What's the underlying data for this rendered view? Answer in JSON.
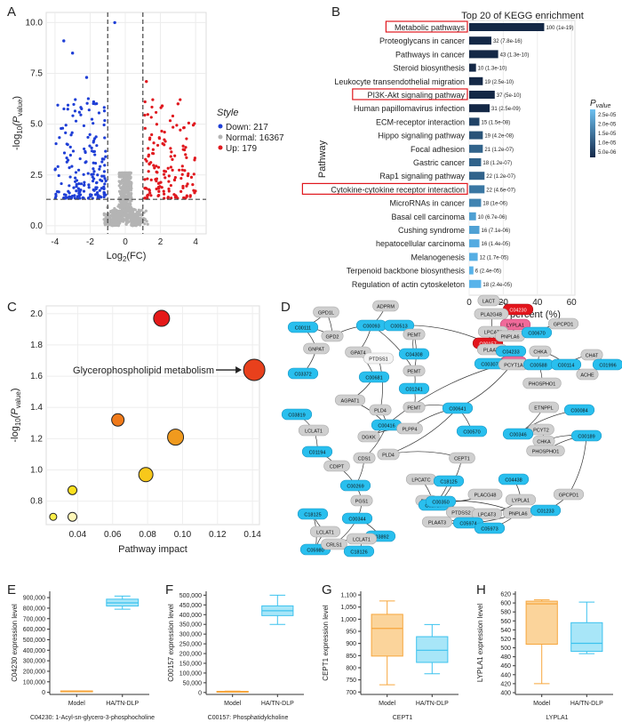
{
  "panels": {
    "A": {
      "letter": "A",
      "chart_data": {
        "type": "scatter",
        "xlabel_main": "Log",
        "xlabel_sub": "2",
        "xlabel_end": "(FC)",
        "ylabel_main": "-log",
        "ylabel_sub": "10",
        "ylabel_p": "(P",
        "ylabel_psub": "value",
        "ylabel_end": ")",
        "xticks": [
          -4,
          -2,
          0,
          2,
          4
        ],
        "yticks": [
          0.0,
          2.5,
          5.0,
          7.5,
          10.0
        ],
        "ytick_labels": [
          "0.0",
          "2.5",
          "5.0",
          "7.5",
          "10.0"
        ],
        "xlim": [
          -4.5,
          4.6
        ],
        "ylim": [
          -0.4,
          10.5
        ],
        "thresholds": {
          "fc": [
            -1,
            1
          ],
          "p": 1.3
        },
        "legend_title": "Style",
        "legend": [
          {
            "label": "Down: 217",
            "color": "#1f3fd6"
          },
          {
            "label": "Normal: 16367",
            "color": "#b4b4b4"
          },
          {
            "label": "Up: 179",
            "color": "#e0181e"
          }
        ]
      }
    },
    "B": {
      "letter": "B",
      "chart_data": {
        "type": "bar",
        "title": "Top 20 of KEGG enrichment",
        "xlabel": "Gene percent (%)",
        "ylabel": "Pathway",
        "xticks": [
          0,
          20,
          40,
          60
        ],
        "xlim": [
          0,
          62
        ],
        "legend_title_main": "P",
        "legend_title_sub": "value",
        "legend_ticks": [
          "2.5e-05",
          "2.0e-05",
          "1.5e-05",
          "1.0e-05",
          "5.0e-06"
        ],
        "highlighted": [
          "Metabolic pathways",
          "PI3K-Akt signaling pathway",
          "Cytokine-cytokine receptor interaction"
        ],
        "categories": [
          "Metabolic pathways",
          "Proteoglycans in cancer",
          "Pathways in cancer",
          "Steroid biosynthesis",
          "Leukocyte transendothelial migration",
          "PI3K-Akt signaling pathway",
          "Human papillomavirus infection",
          "ECM-receptor interaction",
          "Hippo signaling pathway",
          "Focal adhesion",
          "Gastric cancer",
          "Rap1 signaling pathway",
          "Cytokine-cytokine receptor interaction",
          "MicroRNAs in cancer",
          "Basal cell carcinoma",
          "Cushing syndrome",
          "hepatocellular carcinoma",
          "Melanogenesis",
          "Terpenoid backbone biosynthesis",
          "Regulation of actin cytoskeleton"
        ],
        "values": [
          44,
          13,
          17,
          4,
          8,
          15,
          12,
          6,
          8,
          8,
          7,
          9,
          9,
          7,
          4,
          6,
          6,
          5,
          2.5,
          7
        ],
        "labels": [
          "100 (1e-19)",
          "32 (7.8e-16)",
          "43 (1.3e-10)",
          "10 (1.3e-10)",
          "19 (2.5e-10)",
          "37 (5e-10)",
          "31 (2.5e-09)",
          "15 (1.5e-08)",
          "19 (4.2e-08)",
          "21 (1.2e-07)",
          "18 (1.2e-07)",
          "22 (1.2e-07)",
          "22 (4.6e-07)",
          "18 (1e-06)",
          "10 (6.7e-06)",
          "16 (7.1e-06)",
          "16 (1.4e-05)",
          "12 (1.7e-05)",
          "6 (2.4e-05)",
          "18 (2.4e-05)"
        ],
        "pvalues": [
          1e-19,
          7.8e-16,
          1.3e-10,
          1.3e-10,
          2.5e-10,
          5e-10,
          2.5e-09,
          1.5e-08,
          4.2e-08,
          1.2e-07,
          1.2e-07,
          1.2e-07,
          4.6e-07,
          1e-06,
          6.7e-06,
          7.1e-06,
          1.4e-05,
          1.7e-05,
          2.4e-05,
          2.4e-05
        ]
      }
    },
    "C": {
      "letter": "C",
      "chart_data": {
        "type": "scatter",
        "xlabel": "Pathway impact",
        "ylabel_main": "-log",
        "ylabel_sub": "10",
        "ylabel_p": "(P",
        "ylabel_psub": "value",
        "ylabel_end": ")",
        "xticks": [
          0.04,
          0.06,
          0.08,
          0.1,
          0.12,
          0.14
        ],
        "xtick_labels": [
          "0.04",
          "0.06",
          "0.08",
          "0.10",
          "0.12",
          "0.14"
        ],
        "yticks": [
          0.8,
          1.0,
          1.2,
          1.4,
          1.6,
          1.8,
          2.0
        ],
        "ytick_labels": [
          "0.8",
          "1.0",
          "1.2",
          "1.4",
          "1.6",
          "1.8",
          "2.0"
        ],
        "xlim": [
          0.022,
          0.144
        ],
        "ylim": [
          0.65,
          2.05
        ],
        "annotation": "Glycerophospholipid metabolism",
        "points": [
          {
            "x": 0.141,
            "y": 1.64,
            "size": 12,
            "color": "#e8401c"
          },
          {
            "x": 0.088,
            "y": 1.97,
            "size": 9,
            "color": "#e51919"
          },
          {
            "x": 0.063,
            "y": 1.32,
            "size": 7,
            "color": "#f07a1a"
          },
          {
            "x": 0.096,
            "y": 1.21,
            "size": 9,
            "color": "#f09a1e"
          },
          {
            "x": 0.079,
            "y": 0.97,
            "size": 8,
            "color": "#f8c81a"
          },
          {
            "x": 0.037,
            "y": 0.87,
            "size": 5,
            "color": "#fbe01e"
          },
          {
            "x": 0.026,
            "y": 0.7,
            "size": 4,
            "color": "#fdf04a"
          },
          {
            "x": 0.037,
            "y": 0.7,
            "size": 5,
            "color": "#fff7b8"
          }
        ]
      }
    },
    "D": {
      "letter": "D",
      "nodes": [
        {
          "t": "GPD1L",
          "k": "g"
        },
        {
          "t": "ADPRM",
          "k": "g"
        },
        {
          "t": "C00111",
          "k": "b"
        },
        {
          "t": "GPD2",
          "k": "g"
        },
        {
          "t": "C00093",
          "k": "b"
        },
        {
          "t": "C00513",
          "k": "b"
        },
        {
          "t": "GNPAT",
          "k": "g"
        },
        {
          "t": "C03372",
          "k": "b"
        },
        {
          "t": "GPAT4",
          "k": "g"
        },
        {
          "t": "PTDSS1",
          "k": "w"
        },
        {
          "t": "C00681",
          "k": "b"
        },
        {
          "t": "AGPAT1",
          "k": "g"
        },
        {
          "t": "PLD4",
          "k": "g"
        },
        {
          "t": "C04308",
          "k": "b"
        },
        {
          "t": "PEMT",
          "k": "g"
        },
        {
          "t": "PEMT",
          "k": "g"
        },
        {
          "t": "C01241",
          "k": "b"
        },
        {
          "t": "PEMT",
          "k": "g"
        },
        {
          "t": "LACT",
          "k": "g"
        },
        {
          "t": "C04230",
          "k": "r"
        },
        {
          "t": "PLA2G4B",
          "k": "g"
        },
        {
          "t": "LYPLA1",
          "k": "p"
        },
        {
          "t": "C00157",
          "k": "r"
        },
        {
          "t": "LPCAT3",
          "k": "g"
        },
        {
          "t": "PNPLA6",
          "k": "g"
        },
        {
          "t": "C00670",
          "k": "b"
        },
        {
          "t": "GPCPD1",
          "k": "g"
        },
        {
          "t": "PLAAT3",
          "k": "g"
        },
        {
          "t": "C04233",
          "k": "b"
        },
        {
          "t": "CEPT1",
          "k": "p"
        },
        {
          "t": "C00307",
          "k": "b"
        },
        {
          "t": "PCYT1A",
          "k": "g"
        },
        {
          "t": "C00588",
          "k": "b"
        },
        {
          "t": "CHKA",
          "k": "g"
        },
        {
          "t": "C00114",
          "k": "b"
        },
        {
          "t": "CHAT",
          "k": "g"
        },
        {
          "t": "C01996",
          "k": "b"
        },
        {
          "t": "PHOSPHO1",
          "k": "g"
        },
        {
          "t": "ACHE",
          "k": "g"
        },
        {
          "t": "C03819",
          "k": "b"
        },
        {
          "t": "C00416",
          "k": "b"
        },
        {
          "t": "DGKK",
          "k": "g"
        },
        {
          "t": "PLPP4",
          "k": "g"
        },
        {
          "t": "C00641",
          "k": "b"
        },
        {
          "t": "ETNPPL",
          "k": "g"
        },
        {
          "t": "C00084",
          "k": "b"
        },
        {
          "t": "LCLAT1",
          "k": "g"
        },
        {
          "t": "C00570",
          "k": "b"
        },
        {
          "t": "PCYT2",
          "k": "g"
        },
        {
          "t": "C01194",
          "k": "b"
        },
        {
          "t": "CHKA",
          "k": "g"
        },
        {
          "t": "C00346",
          "k": "b"
        },
        {
          "t": "PHOSPHO1",
          "k": "g"
        },
        {
          "t": "C00189",
          "k": "b"
        },
        {
          "t": "CDS1",
          "k": "g"
        },
        {
          "t": "PLD4",
          "k": "g"
        },
        {
          "t": "CEPT1",
          "k": "g"
        },
        {
          "t": "CDIPT",
          "k": "g"
        },
        {
          "t": "C00269",
          "k": "b"
        },
        {
          "t": "C18125",
          "k": "b"
        },
        {
          "t": "LPCATC",
          "k": "g"
        },
        {
          "t": "C18125",
          "k": "b"
        },
        {
          "t": "C04438",
          "k": "b"
        },
        {
          "t": "PISD",
          "k": "g"
        },
        {
          "t": "C02737",
          "k": "b"
        },
        {
          "t": "PLACG48",
          "k": "g"
        },
        {
          "t": "LYPLA1",
          "k": "g"
        },
        {
          "t": "GPCPD1",
          "k": "g"
        },
        {
          "t": "PGS1",
          "k": "g"
        },
        {
          "t": "C00350",
          "k": "b"
        },
        {
          "t": "LCLAT1",
          "k": "g"
        },
        {
          "t": "PTDSS2",
          "k": "g"
        },
        {
          "t": "LPCAT3",
          "k": "g"
        },
        {
          "t": "PNPLA6",
          "k": "g"
        },
        {
          "t": "C01233",
          "k": "b"
        },
        {
          "t": "C05980",
          "k": "b"
        },
        {
          "t": "C00344",
          "k": "b"
        },
        {
          "t": "C03892",
          "k": "b"
        },
        {
          "t": "PLAAT3",
          "k": "g"
        },
        {
          "t": "C05974",
          "k": "b"
        },
        {
          "t": "C05973",
          "k": "b"
        },
        {
          "t": "CRLS1",
          "k": "g"
        },
        {
          "t": "LCLAT1",
          "k": "g"
        },
        {
          "t": "C18126",
          "k": "b"
        }
      ]
    },
    "E": {
      "letter": "E",
      "ylabel": "C04230 expression level",
      "caption": "C04230: 1-Acyl-sn-glycero-3-phosphocholine",
      "yticks": [
        0,
        100000,
        200000,
        300000,
        400000,
        500000,
        600000,
        700000,
        800000,
        900000
      ],
      "ytick_labels": [
        "0",
        "100,000",
        "200,000",
        "300,000",
        "400,000",
        "500,000",
        "600,000",
        "700,000",
        "800,000",
        "900,000"
      ],
      "ylim": [
        -20000,
        960000
      ],
      "chart_data": {
        "type": "box",
        "categories": [
          "Model",
          "HA/TN-DLP"
        ],
        "boxes": [
          {
            "min": 9000,
            "q1": 11000,
            "median": 12000,
            "q3": 13000,
            "max": 14000,
            "color": "#f7a63c",
            "fill": "#fbd49b"
          },
          {
            "min": 790000,
            "q1": 820000,
            "median": 850000,
            "q3": 885000,
            "max": 915000,
            "color": "#3cc2ee",
            "fill": "#a8e6f8"
          }
        ]
      }
    },
    "F": {
      "letter": "F",
      "ylabel": "C00157 expression level",
      "caption": "C00157: Phosphatidylcholine",
      "yticks": [
        0,
        50000,
        100000,
        150000,
        200000,
        250000,
        300000,
        350000,
        400000,
        450000,
        500000
      ],
      "ytick_labels": [
        "0",
        "50,000",
        "100,000",
        "150,000",
        "200,000",
        "250,000",
        "300,000",
        "350,000",
        "400,000",
        "450,000",
        "500,000"
      ],
      "ylim": [
        -10000,
        520000
      ],
      "chart_data": {
        "type": "box",
        "categories": [
          "Model",
          "HA/TN-DLP"
        ],
        "boxes": [
          {
            "min": 4000,
            "q1": 5000,
            "median": 5500,
            "q3": 6000,
            "max": 7000,
            "color": "#f7a63c",
            "fill": "#fbd49b"
          },
          {
            "min": 350000,
            "q1": 395000,
            "median": 420000,
            "q3": 445000,
            "max": 500000,
            "color": "#3cc2ee",
            "fill": "#a8e6f8"
          }
        ]
      }
    },
    "G": {
      "letter": "G",
      "ylabel": "CEPT1 expression level",
      "caption": "CEPT1",
      "yticks": [
        700,
        750,
        800,
        850,
        900,
        950,
        1000,
        1050,
        1100
      ],
      "ytick_labels": [
        "700",
        "750",
        "800",
        "850",
        "900",
        "950",
        "1,000",
        "1,050",
        "1,100"
      ],
      "ylim": [
        690,
        1115
      ],
      "chart_data": {
        "type": "box",
        "categories": [
          "Model",
          "HA/TN-DLP"
        ],
        "boxes": [
          {
            "min": 730,
            "q1": 848,
            "median": 962,
            "q3": 1020,
            "max": 1075,
            "color": "#f7a63c",
            "fill": "#fbd49b"
          },
          {
            "min": 775,
            "q1": 822,
            "median": 872,
            "q3": 928,
            "max": 978,
            "color": "#3cc2ee",
            "fill": "#a8e6f8"
          }
        ]
      }
    },
    "H": {
      "letter": "H",
      "ylabel": "LYPLA1 expression level",
      "caption": "LYPLA1",
      "yticks": [
        400,
        420,
        440,
        460,
        480,
        500,
        520,
        540,
        560,
        580,
        600,
        620
      ],
      "ytick_labels": [
        "400",
        "420",
        "440",
        "460",
        "480",
        "500",
        "520",
        "540",
        "560",
        "580",
        "600",
        "620"
      ],
      "ylim": [
        396,
        626
      ],
      "chart_data": {
        "type": "box",
        "categories": [
          "Model",
          "HA/TN-DLP"
        ],
        "boxes": [
          {
            "min": 420,
            "q1": 508,
            "median": 598,
            "q3": 604,
            "max": 607,
            "color": "#f7a63c",
            "fill": "#fbd49b"
          },
          {
            "min": 487,
            "q1": 492,
            "median": 510,
            "q3": 556,
            "max": 602,
            "color": "#3cc2ee",
            "fill": "#a8e6f8"
          }
        ]
      }
    }
  }
}
